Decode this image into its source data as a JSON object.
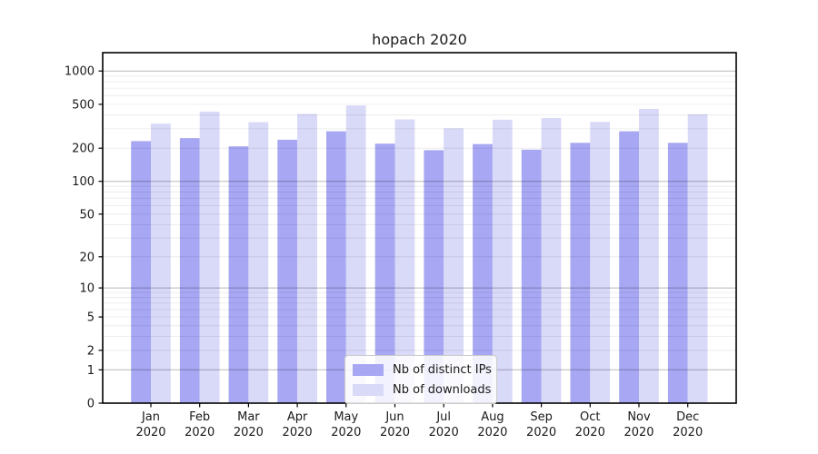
{
  "chart_data": {
    "type": "bar",
    "title": "hopach 2020",
    "year": "2020",
    "categories": [
      "Jan",
      "Feb",
      "Mar",
      "Apr",
      "May",
      "Jun",
      "Jul",
      "Aug",
      "Sep",
      "Oct",
      "Nov",
      "Dec"
    ],
    "series": [
      {
        "name": "Nb of distinct IPs",
        "color": "#a7a7f3",
        "values": [
          232,
          247,
          208,
          239,
          285,
          220,
          192,
          218,
          194,
          224,
          285,
          224
        ]
      },
      {
        "name": "Nb of downloads",
        "color": "#d9d9f8",
        "values": [
          334,
          430,
          345,
          409,
          488,
          365,
          303,
          363,
          375,
          346,
          455,
          407
        ]
      }
    ],
    "ylabel": "",
    "xlabel": "",
    "yscale": "log1p",
    "yticks": [
      0,
      1,
      2,
      5,
      10,
      20,
      50,
      100,
      200,
      500,
      1000
    ],
    "ylim": [
      0,
      1450
    ],
    "grid": "horizontal log gridlines (major at powers of 10, minor at 2-9 steps), drawn over bars",
    "legend_position": "inside bottom-center",
    "colors": {
      "bar_dark": "#a7a7f3",
      "bar_light": "#d9d9f8",
      "grid_major": "rgba(0,0,0,0.28)",
      "grid_minor": "rgba(0,0,0,0.09)",
      "spine": "#000000",
      "text": "#1a1a1a"
    }
  }
}
